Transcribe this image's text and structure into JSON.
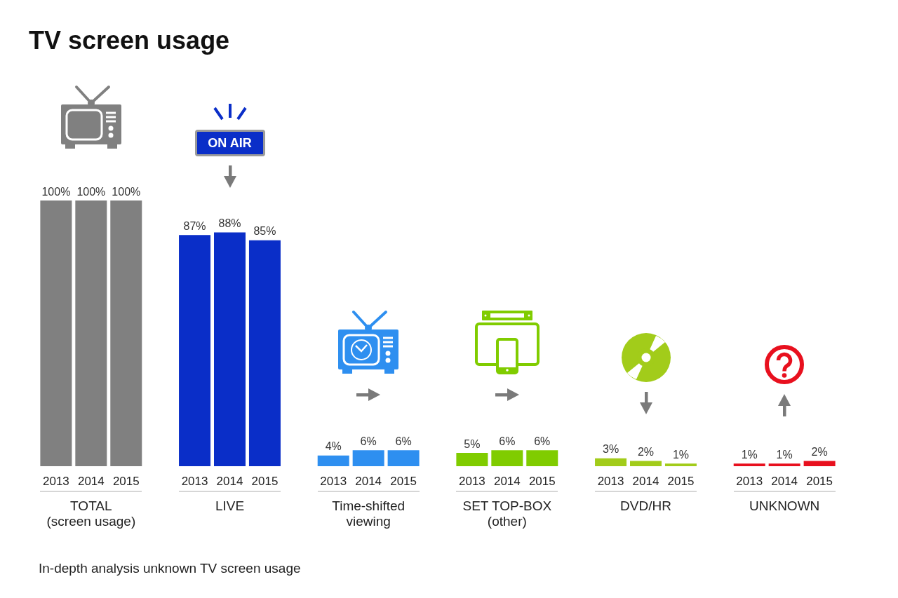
{
  "chart_data": {
    "type": "bar",
    "title": "TV screen usage",
    "categories": [
      "TOTAL\n(screen usage)",
      "LIVE",
      "Time-shifted\nviewing",
      "SET TOP-BOX\n(other)",
      "DVD/HR",
      "UNKNOWN"
    ],
    "series": [
      {
        "name": "2013",
        "colors": [
          "#808080",
          "#0a2ec8",
          "#2e8ff0",
          "#80cc00",
          "#a2cc1a",
          "#e8101e"
        ],
        "values": [
          100,
          87,
          4,
          5,
          3,
          1
        ],
        "value_labels": [
          "100%",
          "87%",
          "4%",
          "5%",
          "3%",
          "1%"
        ]
      },
      {
        "name": "2014",
        "colors": [
          "#808080",
          "#0a2ec8",
          "#2e8ff0",
          "#80cc00",
          "#a2cc1a",
          "#e8101e"
        ],
        "values": [
          100,
          88,
          6,
          6,
          2,
          1
        ],
        "value_labels": [
          "100%",
          "88%",
          "6%",
          "6%",
          "2%",
          "1%"
        ]
      },
      {
        "name": "2015",
        "colors": [
          "#808080",
          "#0a2ec8",
          "#2e8ff0",
          "#80cc00",
          "#a2cc1a",
          "#e8101e"
        ],
        "values": [
          100,
          85,
          6,
          6,
          1,
          2
        ],
        "value_labels": [
          "100%",
          "85%",
          "6%",
          "6%",
          "1%",
          "2%"
        ]
      }
    ],
    "annotations": [
      "ON AIR",
      "In-depth analysis unknown TV screen usage"
    ]
  }
}
